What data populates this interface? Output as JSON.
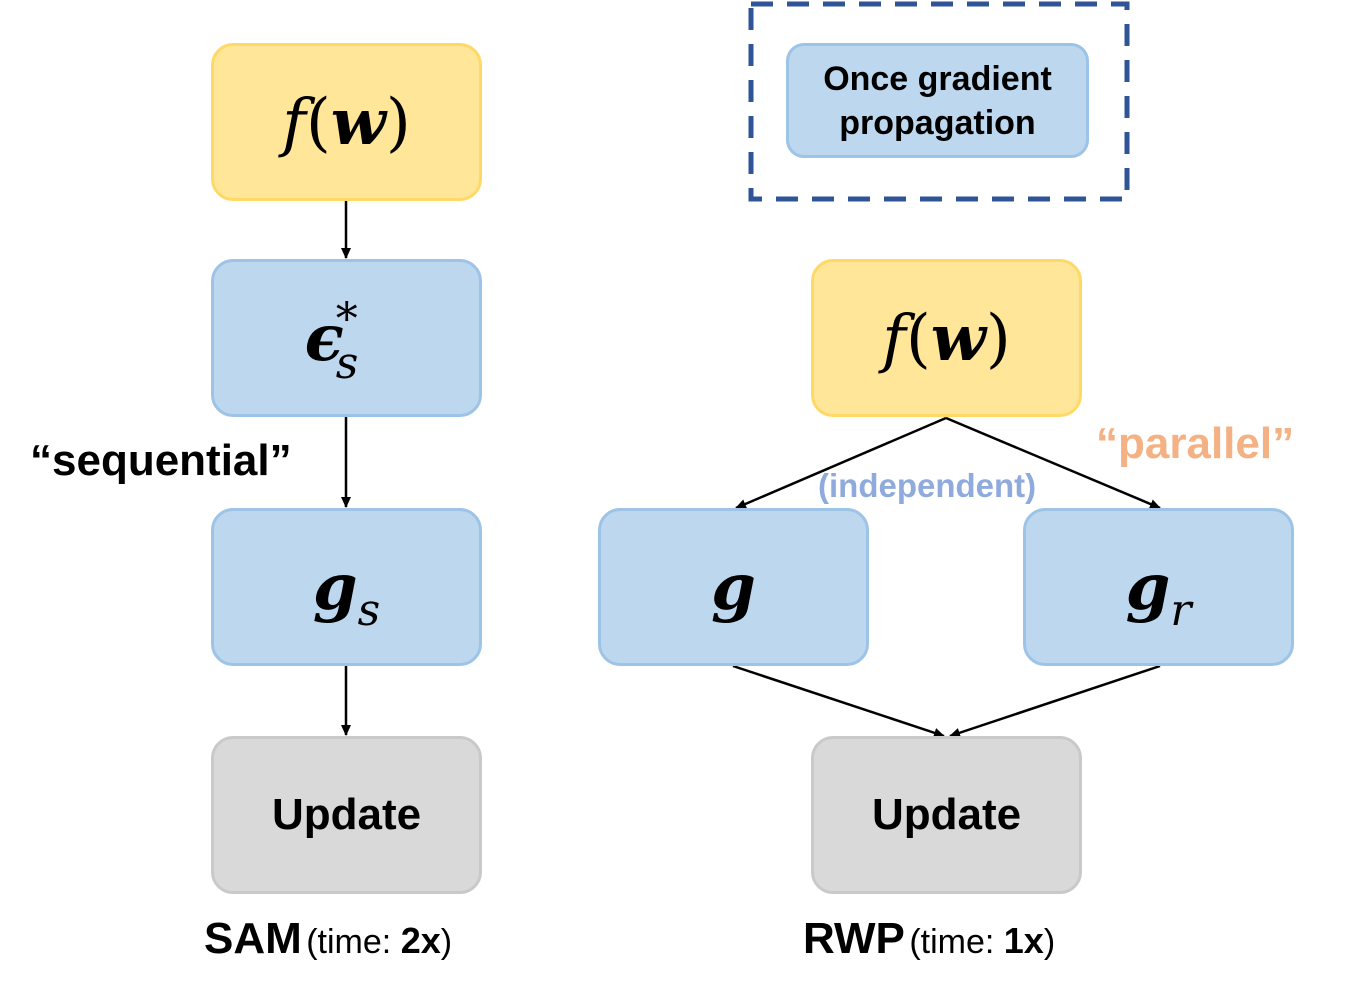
{
  "legend": {
    "label_line1": "Once gradient",
    "label_line2": "propagation"
  },
  "sam": {
    "node1": {
      "func": "f",
      "var": "w"
    },
    "node2": {
      "symbol": "ϵ",
      "sup": "*",
      "sub": "s"
    },
    "node3": {
      "symbol": "g",
      "sub": "s"
    },
    "node4": {
      "label": "Update"
    },
    "annotation": "“sequential”",
    "caption": {
      "name": "SAM",
      "prefix": "(time: ",
      "value": "2x",
      "suffix": ")"
    }
  },
  "rwp": {
    "node1": {
      "func": "f",
      "var": "w"
    },
    "node_left": {
      "symbol": "g"
    },
    "node_right": {
      "symbol": "g",
      "sub": "r"
    },
    "node_update": {
      "label": "Update"
    },
    "annotation_parallel": "“parallel”",
    "annotation_independent": "(independent)",
    "caption": {
      "name": "RWP",
      "prefix": "(time: ",
      "value": "1x",
      "suffix": ")"
    }
  },
  "colors": {
    "yellow_fill": "#ffe699",
    "blue_fill": "#bdd7ee",
    "gray_fill": "#d9d9d9",
    "legend_border": "#2f5597",
    "parallel_text": "#f4b183",
    "independent_text": "#8faadc"
  }
}
